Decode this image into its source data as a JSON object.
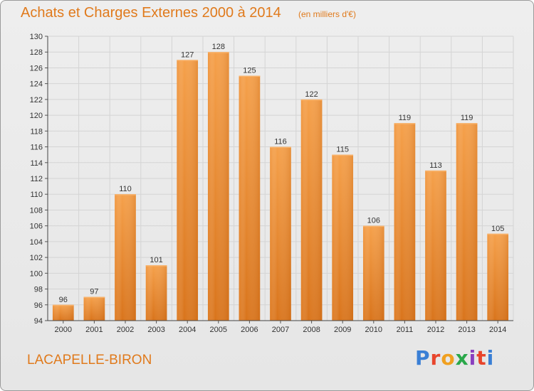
{
  "header": {
    "title": "Achats et Charges Externes 2000 à 2014",
    "subtitle": "(en milliers d'€)"
  },
  "footer": {
    "place": "LACAPELLE-BIRON",
    "logo_text": "Proxiti",
    "logo_colors": [
      "#3a7fd5",
      "#e8452c",
      "#f0a020",
      "#2aa84a",
      "#8a3fbf",
      "#e8452c",
      "#3a7fd5"
    ]
  },
  "chart_data": {
    "type": "bar",
    "categories": [
      "2000",
      "2001",
      "2002",
      "2003",
      "2004",
      "2005",
      "2006",
      "2007",
      "2008",
      "2009",
      "2010",
      "2011",
      "2012",
      "2013",
      "2014"
    ],
    "values": [
      96,
      97,
      110,
      101,
      127,
      128,
      125,
      116,
      122,
      115,
      106,
      119,
      113,
      119,
      105
    ],
    "data_labels": [
      "96",
      "97",
      "110",
      "101",
      "127",
      "128",
      "125",
      "116",
      "122",
      "115",
      "106",
      "119",
      "113",
      "119",
      "105"
    ],
    "ylim": [
      94,
      130
    ],
    "yticks": [
      "94",
      "96",
      "98",
      "100",
      "102",
      "104",
      "106",
      "108",
      "110",
      "112",
      "114",
      "116",
      "118",
      "120",
      "122",
      "124",
      "126",
      "128",
      "130"
    ],
    "grid": true,
    "bar_color": "#f0993a",
    "bar_color_dark": "#d9741b",
    "title": "Achats et Charges Externes 2000 à 2014",
    "xlabel": "",
    "ylabel": ""
  }
}
